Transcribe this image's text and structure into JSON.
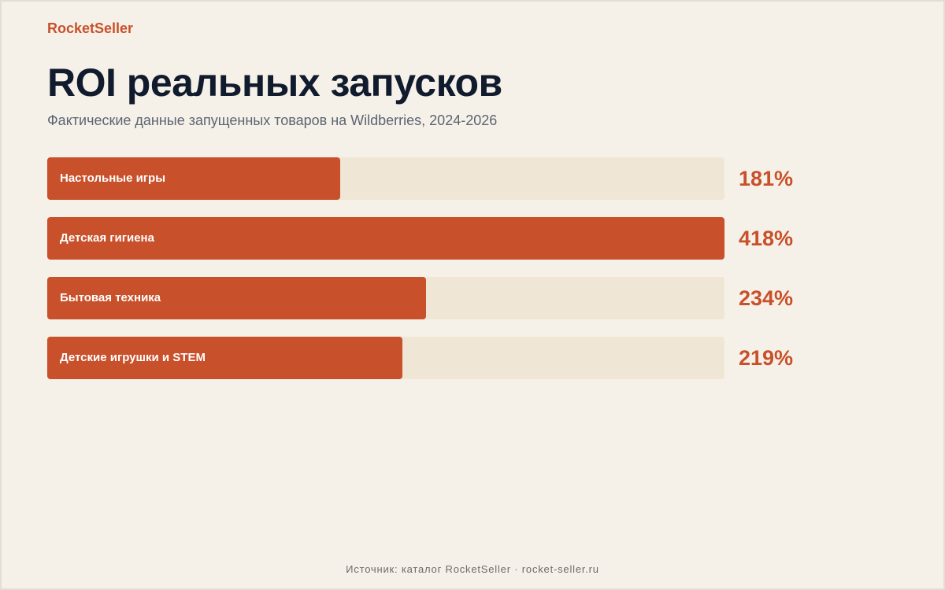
{
  "brand": "RocketSeller",
  "footer": "Источник: каталог RocketSeller · rocket-seller.ru",
  "colors": {
    "accent": "#c8502a",
    "track": "#efe6d5",
    "background": "#f6f1e8",
    "title": "#111b2e"
  },
  "chart_data": {
    "type": "bar",
    "orientation": "horizontal",
    "title": "ROI реальных запусков",
    "subtitle": "Фактические данные запущенных товаров на Wildberries, 2024-2026",
    "categories": [
      "Настольные игры",
      "Детская гигиена",
      "Бытовая техника",
      "Детские игрушки и STEM"
    ],
    "values": [
      181,
      418,
      234,
      219
    ],
    "value_labels": [
      "181%",
      "418%",
      "234%",
      "219%"
    ],
    "unit": "%",
    "xlim": [
      0,
      418
    ],
    "grid": false,
    "legend": "none"
  }
}
